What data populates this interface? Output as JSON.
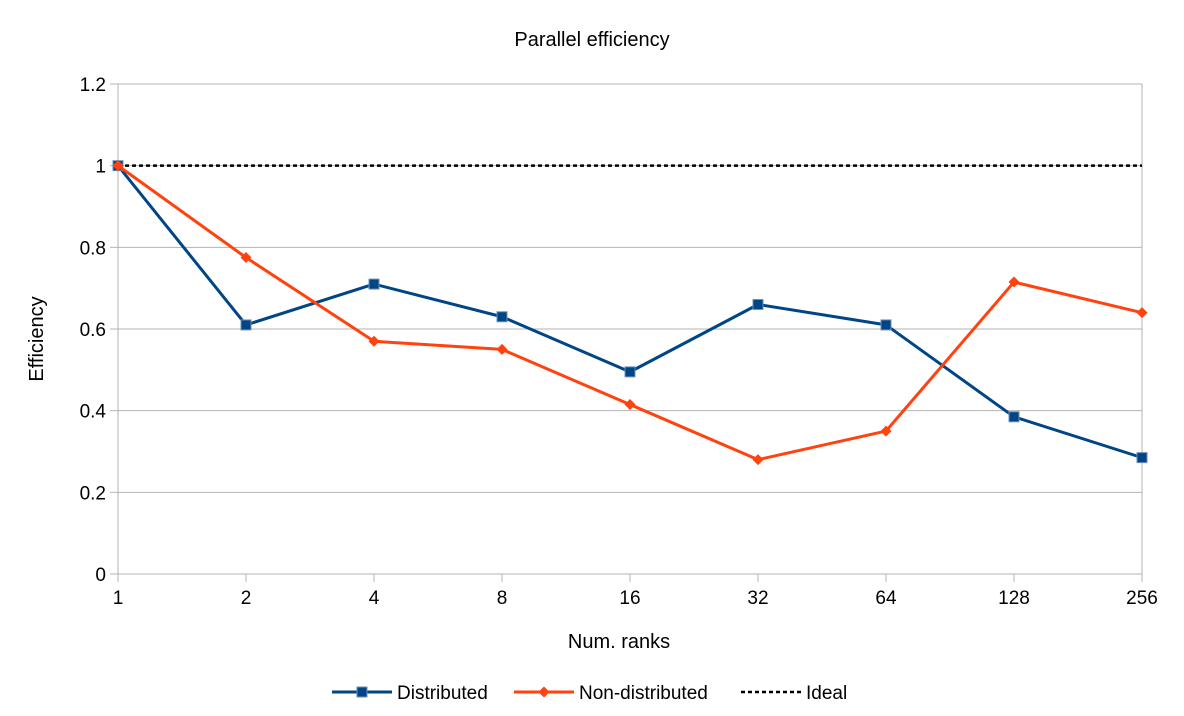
{
  "chart_data": {
    "type": "line",
    "title": "Parallel efficiency",
    "xlabel": "Num. ranks",
    "ylabel": "Efficiency",
    "categories": [
      "1",
      "2",
      "4",
      "8",
      "16",
      "32",
      "64",
      "128",
      "256"
    ],
    "ylim": [
      0,
      1.2
    ],
    "yticks": [
      "0",
      "0.2",
      "0.4",
      "0.6",
      "0.8",
      "1",
      "1.2"
    ],
    "grid": true,
    "legend_position": "bottom",
    "series": [
      {
        "name": "Distributed",
        "color": "#004586",
        "marker": "square",
        "dash": false,
        "values": [
          1.0,
          0.61,
          0.71,
          0.63,
          0.495,
          0.66,
          0.61,
          0.385,
          0.285
        ]
      },
      {
        "name": "Non-distributed",
        "color": "#ff420e",
        "marker": "diamond",
        "dash": false,
        "values": [
          1.0,
          0.775,
          0.57,
          0.55,
          0.415,
          0.28,
          0.35,
          0.715,
          0.64
        ]
      },
      {
        "name": "Ideal",
        "color": "#000000",
        "marker": "none",
        "dash": true,
        "values": [
          1,
          1,
          1,
          1,
          1,
          1,
          1,
          1,
          1
        ]
      }
    ]
  }
}
